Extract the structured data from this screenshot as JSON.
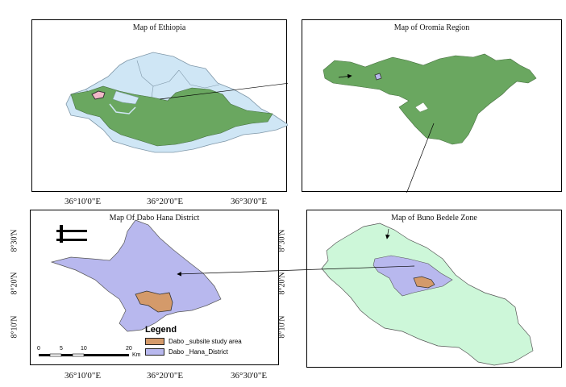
{
  "panels": {
    "ethiopia": {
      "title": "Map of Ethiopia"
    },
    "oromia": {
      "title": "Map of Oromia Region"
    },
    "dabo": {
      "title": "Map Of Dabo Hana District"
    },
    "buno": {
      "title": "Map of Buno Bedele Zone"
    }
  },
  "coords": {
    "top": [
      "36°10'0\"E",
      "36°20'0\"E",
      "36°30'0\"E"
    ],
    "bottom": [
      "36°10'0\"E",
      "36°20'0\"E",
      "36°30'0\"E"
    ],
    "left": [
      "8°30'N",
      "8°20'N",
      "8°10'N"
    ],
    "right": [
      "8°30'N",
      "8°20'N",
      "8°10'N"
    ]
  },
  "legend": {
    "title": "Legend",
    "items": [
      {
        "label": "Dabo _subsite study area",
        "color": "#d49a6a"
      },
      {
        "label": "Dabo _Hana_District",
        "color": "#b8b8ee"
      }
    ]
  },
  "scalebar": {
    "ticks": [
      "0",
      "5",
      "10",
      "20"
    ],
    "unit": "Km"
  },
  "colors": {
    "oromia_green": "#6aa760",
    "ethiopia_blue": "#cfe6f5",
    "district_lavender": "#b8b8ee",
    "study_area": "#d49a6a",
    "zone_green": "#cdf7d9"
  }
}
